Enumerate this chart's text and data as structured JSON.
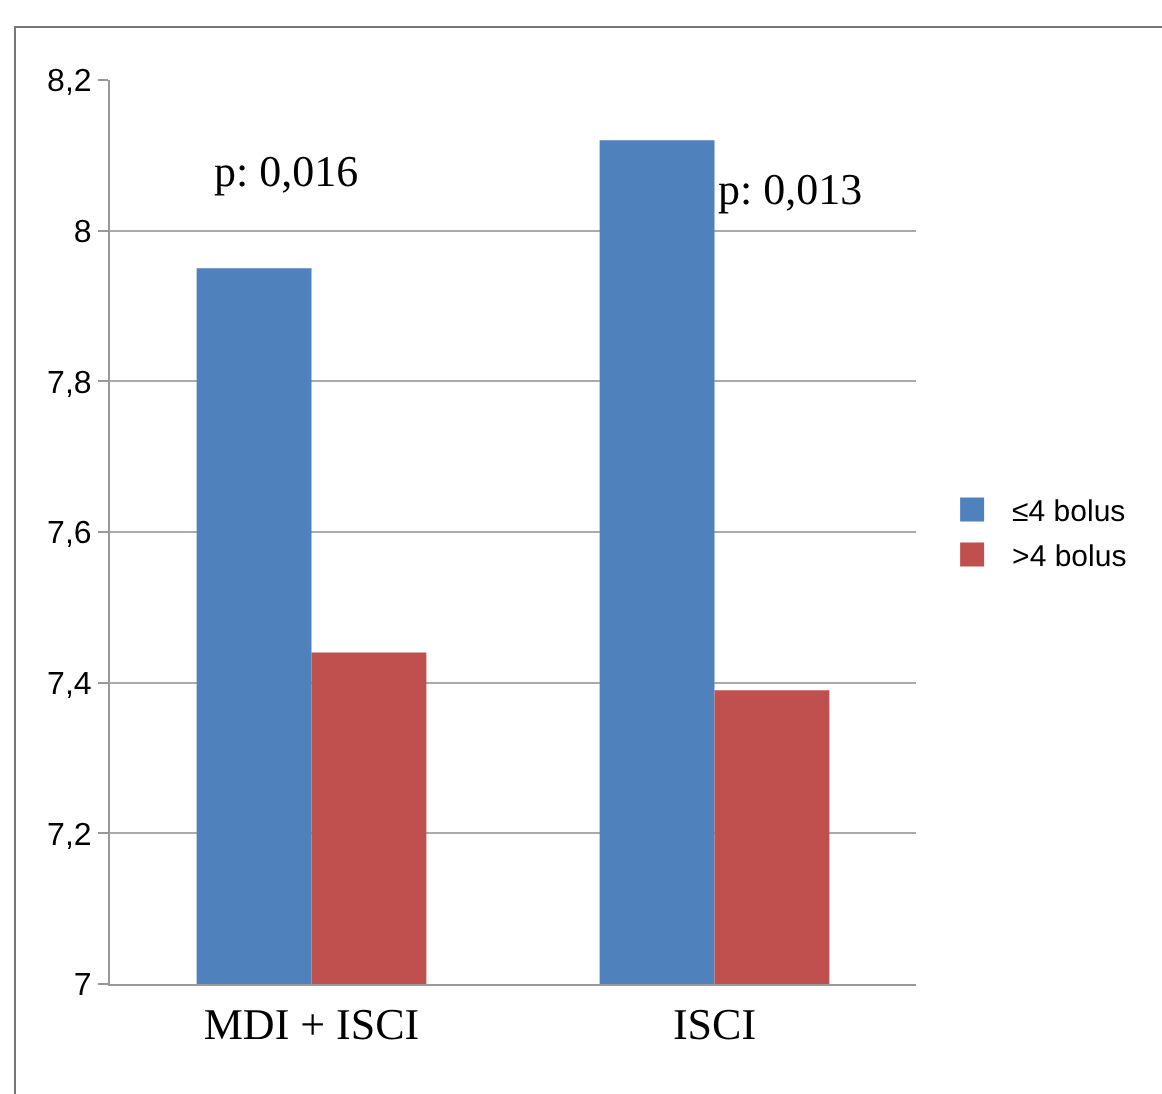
{
  "chart_data": {
    "type": "bar",
    "categories": [
      "MDI + ISCI",
      "ISCI"
    ],
    "series": [
      {
        "name": "≤4 bolus",
        "color": "#4f81bd",
        "values": [
          7.95,
          8.12
        ]
      },
      {
        "name": ">4 bolus",
        "color": "#c0504d",
        "values": [
          7.44,
          7.39
        ]
      }
    ],
    "ylim": [
      7,
      8.2
    ],
    "yticks": [
      {
        "value": 7,
        "label": "7"
      },
      {
        "value": 7.2,
        "label": "7,2"
      },
      {
        "value": 7.4,
        "label": "7,4"
      },
      {
        "value": 7.6,
        "label": "7,6"
      },
      {
        "value": 7.8,
        "label": "7,8"
      },
      {
        "value": 8,
        "label": "8"
      },
      {
        "value": 8.2,
        "label": "8,2"
      }
    ],
    "grid": "y",
    "legend": "right",
    "annotations": [
      "p: 0,016",
      "p: 0,013"
    ]
  }
}
